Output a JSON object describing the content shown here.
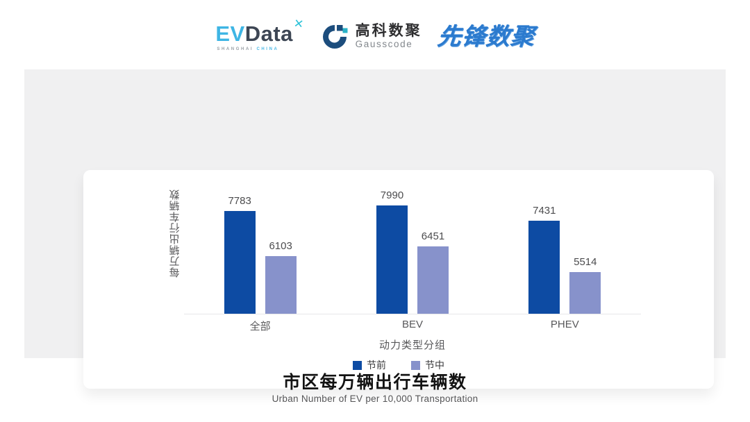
{
  "header": {
    "evdata": {
      "ev": "EV",
      "data": "Data",
      "spark_glyph": "✕",
      "sub_shanghai": "SHANGHAI",
      "sub_china": "CHINA"
    },
    "gausscode": {
      "cn": "高科数聚",
      "en": "Gausscode"
    },
    "pioneer": "先锋数聚"
  },
  "chart_data": {
    "type": "bar",
    "categories": [
      "全部",
      "BEV",
      "PHEV"
    ],
    "series": [
      {
        "name": "节前",
        "color": "#0d4ba3",
        "values": [
          7783,
          7990,
          7431
        ]
      },
      {
        "name": "节中",
        "color": "#8792cb",
        "values": [
          6103,
          6451,
          5514
        ]
      }
    ],
    "title": "市区每万辆出行车辆数",
    "xlabel": "动力类型分组",
    "ylabel": "每万辆出行车辆数",
    "ylim": [
      3950,
      8350
    ],
    "grid": false,
    "legend_position": "bottom",
    "axis_line_color": "#e7e7e9"
  },
  "footer": {
    "title": "市区每万辆出行车辆数",
    "subtitle": "Urban Number of EV per 10,000 Transportation"
  }
}
